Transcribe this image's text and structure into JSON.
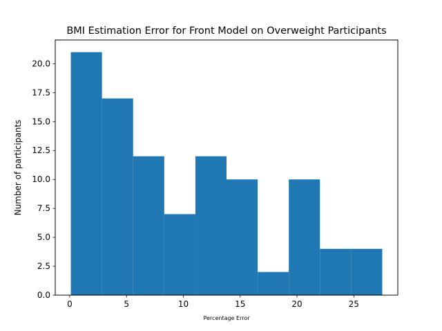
{
  "chart_data": {
    "type": "bar",
    "title": "BMI Estimation Error for Front Model on Overweight Participants",
    "xlabel": "Percentage Error",
    "ylabel": "Number of participants",
    "bins": [
      {
        "x0": 0.1,
        "x1": 2.84,
        "count": 21
      },
      {
        "x0": 2.84,
        "x1": 5.58,
        "count": 17
      },
      {
        "x0": 5.58,
        "x1": 8.32,
        "count": 12
      },
      {
        "x0": 8.32,
        "x1": 11.06,
        "count": 7
      },
      {
        "x0": 11.06,
        "x1": 13.8,
        "count": 12
      },
      {
        "x0": 13.8,
        "x1": 16.54,
        "count": 10
      },
      {
        "x0": 16.54,
        "x1": 19.28,
        "count": 2
      },
      {
        "x0": 19.28,
        "x1": 22.02,
        "count": 10
      },
      {
        "x0": 22.02,
        "x1": 24.76,
        "count": 4
      },
      {
        "x0": 24.76,
        "x1": 27.5,
        "count": 4
      }
    ],
    "xlim": [
      -1.27,
      28.87
    ],
    "ylim": [
      0,
      22.05
    ],
    "xticks": [
      0,
      5,
      10,
      15,
      20,
      25
    ],
    "xtick_labels": [
      "0",
      "5",
      "10",
      "15",
      "20",
      "25"
    ],
    "yticks": [
      0,
      2.5,
      5,
      7.5,
      10,
      12.5,
      15,
      17.5,
      20
    ],
    "ytick_labels": [
      "0.0",
      "2.5",
      "5.0",
      "7.5",
      "10.0",
      "12.5",
      "15.0",
      "17.5",
      "20.0"
    ],
    "grid": false,
    "bar_color": "#1f77b4"
  }
}
